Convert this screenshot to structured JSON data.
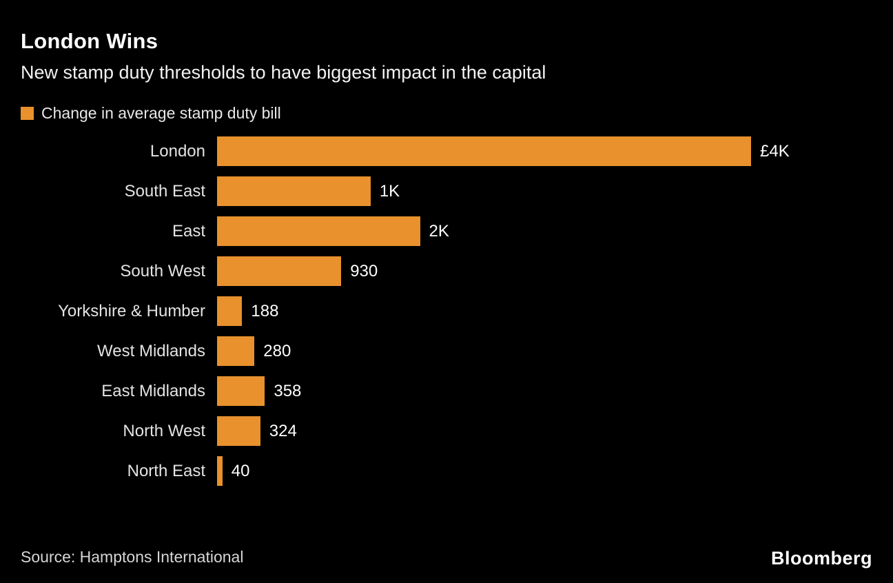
{
  "header": {
    "title": "London Wins",
    "subtitle": "New stamp duty thresholds to have biggest impact in the capital"
  },
  "legend": {
    "label": "Change in average stamp duty bill",
    "swatch_color": "#E8912D"
  },
  "chart_data": {
    "type": "bar",
    "orientation": "horizontal",
    "title": "London Wins",
    "xlabel": "",
    "ylabel": "",
    "grid": false,
    "legend_position": "top-left",
    "bar_color": "#E8912D",
    "xlim": [
      0,
      4000
    ],
    "categories": [
      "London",
      "South East",
      "East",
      "South West",
      "Yorkshire & Humber",
      "West Midlands",
      "East Midlands",
      "North West",
      "North East"
    ],
    "values": [
      4000,
      1150,
      1520,
      930,
      188,
      280,
      358,
      324,
      40
    ],
    "value_labels": [
      "£4K",
      "1K",
      "2K",
      "930",
      "188",
      "280",
      "358",
      "324",
      "40"
    ]
  },
  "footer": {
    "source": "Source: Hamptons International",
    "logo": "Bloomberg"
  }
}
